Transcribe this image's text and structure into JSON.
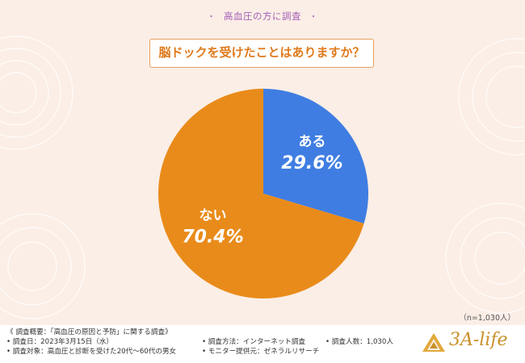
{
  "header": {
    "label": "高血圧の方に調査",
    "dot": "・"
  },
  "question": "脳ドックを受けたことはありますか？",
  "chart_data": {
    "type": "pie",
    "slices": [
      {
        "label": "ある",
        "value": 29.6,
        "display": "29.6%",
        "color": "#3f7de2"
      },
      {
        "label": "ない",
        "value": 70.4,
        "display": "70.4%",
        "color": "#e98b1a"
      }
    ],
    "start": "12 o'clock",
    "direction": "clockwise"
  },
  "sample_size": "（n=1,030人）",
  "footer": {
    "title": "《 調査概要：「高血圧の原因と予防」に関する調査》",
    "date": "• 調査日：2023年3月15日（水）",
    "target": "• 調査対象：高血圧と診断を受けた20代〜60代の男女",
    "method": "• 調査方法：インターネット調査",
    "provider": "• モニター提供元：ゼネラルリサーチ",
    "count": "• 調査人数：1,030人"
  },
  "logo": {
    "text": "3A-life",
    "color": "#c8912a"
  }
}
